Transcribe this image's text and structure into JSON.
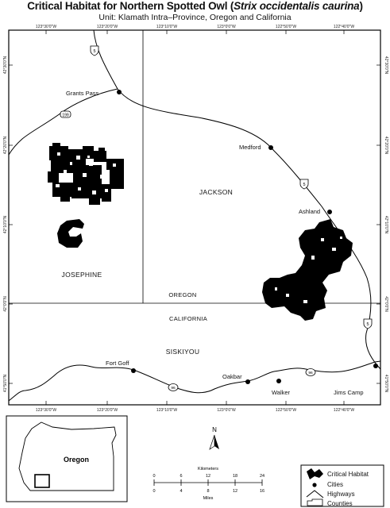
{
  "title_main": "Critical Habitat for Northern Spotted Owl (",
  "title_species": "Strix occidentalis caurina",
  "title_close": ")",
  "subtitle": "Unit: Klamath Intra–Province, Oregon and California",
  "top_ticks": [
    "123°30'0\"W",
    "123°20'0\"W",
    "123°10'0\"W",
    "123°0'0\"W",
    "122°50'0\"W",
    "122°40'0\"W"
  ],
  "bottom_ticks": [
    "123°30'0\"W",
    "123°20'0\"W",
    "123°10'0\"W",
    "123°0'0\"W",
    "122°50'0\"W",
    "122°40'0\"W"
  ],
  "left_ticks": [
    "42°30'0\"N",
    "42°20'0\"N",
    "42°10'0\"N",
    "42°0'0\"N",
    "41°50'0\"N"
  ],
  "right_ticks": [
    "42°30'0\"N",
    "42°20'0\"N",
    "42°10'0\"N",
    "42°0'0\"N",
    "41°50'0\"N"
  ],
  "cities": {
    "grants_pass": "Grants Pass",
    "medford": "Medford",
    "ashland": "Ashland",
    "fort_goff": "Fort Goff",
    "oakbar": "Oakbar",
    "walker": "Walker",
    "jims_camp": "Jims Camp"
  },
  "highway_shields": {
    "i5": "5",
    "us199": "199",
    "ca96": "96"
  },
  "regions": {
    "jackson": "JACKSON",
    "josephine": "JOSEPHINE",
    "siskiyou": "SISKIYOU",
    "oregon": "OREGON",
    "california": "CALIFORNIA"
  },
  "inset": {
    "label": "Oregon"
  },
  "north_arrow": {
    "label": "N"
  },
  "scale_bar": {
    "km_title": "Kilometers",
    "km_ticks": [
      "0",
      "6",
      "12",
      "18",
      "24"
    ],
    "mi_ticks": [
      "0",
      "4",
      "8",
      "12",
      "16"
    ],
    "mi_title": "Miles"
  },
  "legend": {
    "items": [
      {
        "label": "Critical Habitat",
        "icon": "habitat-patch-icon"
      },
      {
        "label": "Cities",
        "icon": "city-dot-icon"
      },
      {
        "label": "Highways",
        "icon": "highway-line-icon"
      },
      {
        "label": "Counties",
        "icon": "county-outline-icon"
      }
    ]
  },
  "colors": {
    "habitat": "#000000",
    "frame": "#000000",
    "background": "#ffffff"
  }
}
